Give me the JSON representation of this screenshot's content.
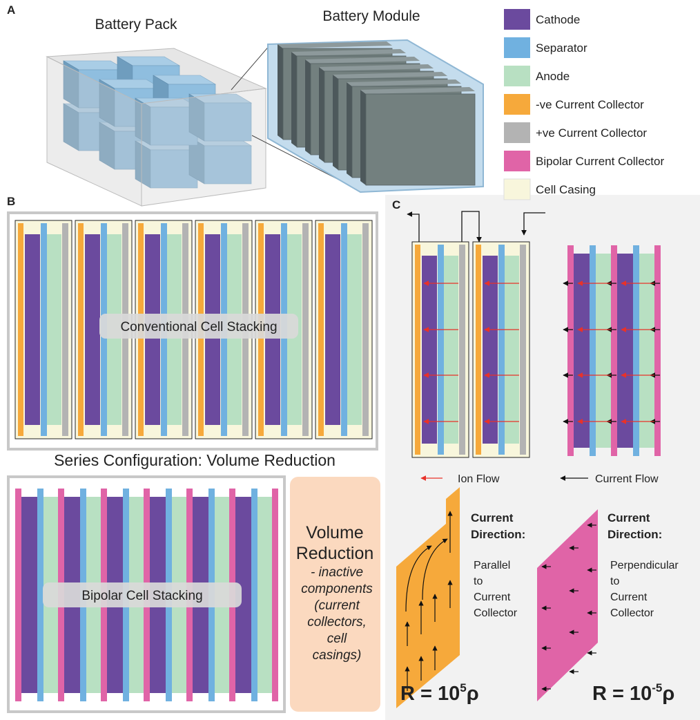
{
  "panel_a": {
    "label": "A",
    "pack_title": "Battery Pack",
    "module_title": "Battery Module"
  },
  "legend": [
    {
      "label": "Cathode",
      "color": "#6b4a9e"
    },
    {
      "label": "Separator",
      "color": "#70b1e0"
    },
    {
      "label": "Anode",
      "color": "#b8e0c2"
    },
    {
      "label": "-ve Current Collector",
      "color": "#f6a93b"
    },
    {
      "label": "+ve Current Collector",
      "color": "#b3b3b3"
    },
    {
      "label": "Bipolar Current Collector",
      "color": "#e064a7"
    },
    {
      "label": "Cell Casing",
      "color": "#f8f6dc"
    }
  ],
  "panel_b": {
    "label": "B",
    "conventional_label": "Conventional Cell Stacking",
    "series_title": "Series Configuration: Volume Reduction",
    "bipolar_label": "Bipolar Cell Stacking",
    "volume_box": {
      "title_lines": [
        "Volume",
        "Reduction"
      ],
      "detail_lines": [
        "- inactive",
        "components",
        "(current",
        "collectors,",
        "cell",
        "casings)"
      ]
    }
  },
  "panel_c": {
    "label": "C",
    "ion_flow": "Ion Flow",
    "current_flow": "Current Flow",
    "parallel": {
      "heading_lines": [
        "Current",
        "Direction:"
      ],
      "text_lines": [
        "Parallel",
        "to",
        "Current",
        "Collector"
      ],
      "resistance": {
        "base": "R = 10",
        "exponent": "5",
        "unit": "ρ"
      }
    },
    "perpendicular": {
      "heading_lines": [
        "Current",
        "Direction:"
      ],
      "text_lines": [
        "Perpendicular",
        "to",
        "Current",
        "Collector"
      ],
      "resistance": {
        "base": "R = 10",
        "exponent": "-5",
        "unit": "ρ"
      }
    }
  }
}
